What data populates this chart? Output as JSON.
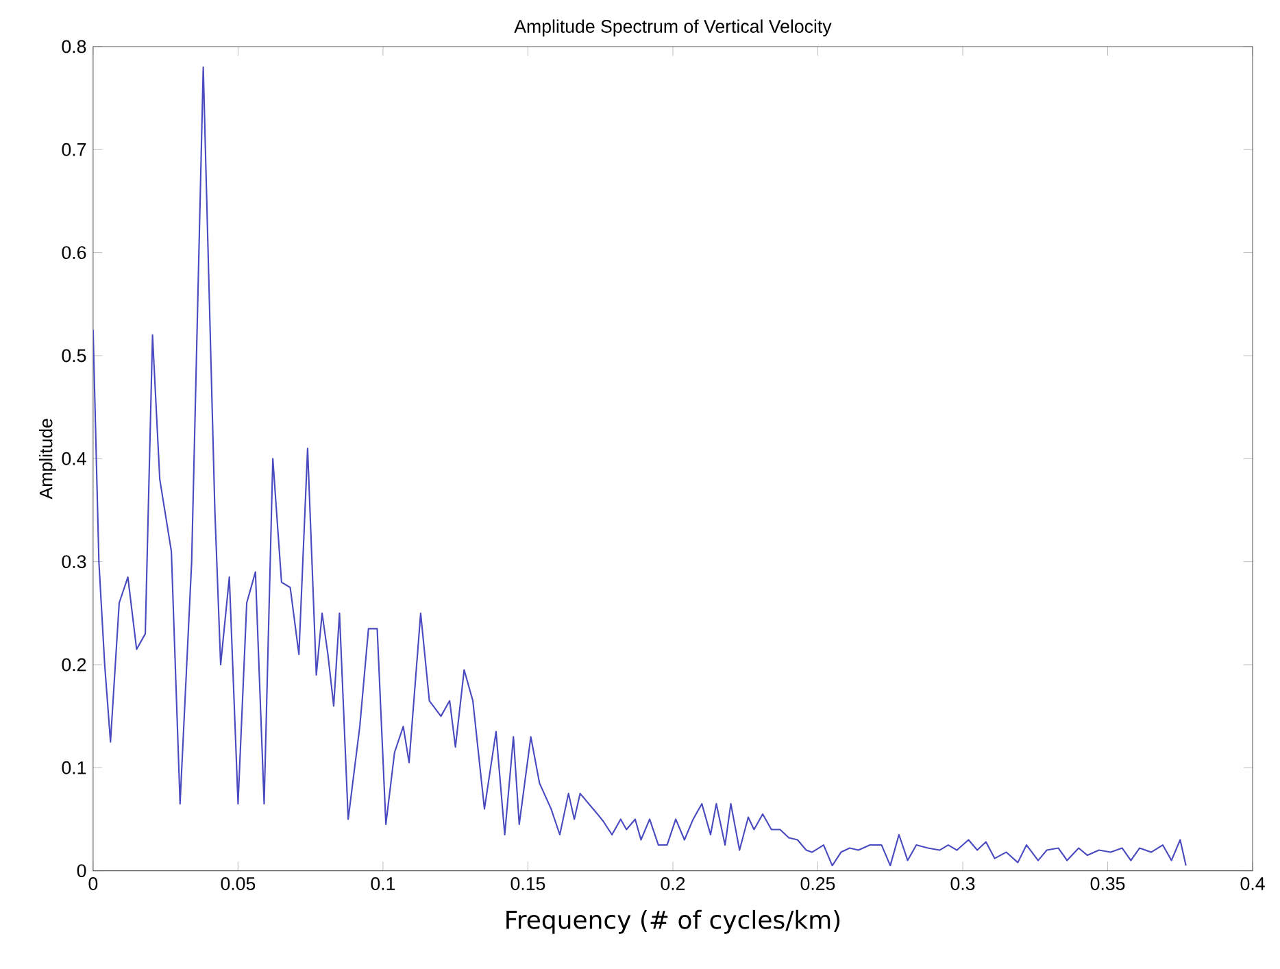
{
  "chart_data": {
    "type": "line",
    "title": "Amplitude Spectrum of Vertical Velocity",
    "xlabel": "Frequency (# of cycles/km)",
    "ylabel": "Amplitude",
    "xlim": [
      0,
      0.4
    ],
    "ylim": [
      0,
      0.8
    ],
    "xticks": [
      0,
      0.05,
      0.1,
      0.15,
      0.2,
      0.25,
      0.3,
      0.35,
      0.4
    ],
    "yticks": [
      0,
      0.1,
      0.2,
      0.3,
      0.4,
      0.5,
      0.6,
      0.7,
      0.8
    ],
    "marker": "none",
    "line_style": "solid",
    "series": [
      {
        "color": "#4a4ac0",
        "x": [
          0,
          0.002,
          0.004,
          0.006,
          0.009,
          0.012,
          0.015,
          0.018,
          0.0205,
          0.023,
          0.027,
          0.03,
          0.034,
          0.038,
          0.042,
          0.044,
          0.047,
          0.05,
          0.053,
          0.056,
          0.059,
          0.062,
          0.065,
          0.068,
          0.071,
          0.074,
          0.077,
          0.079,
          0.081,
          0.083,
          0.085,
          0.088,
          0.092,
          0.095,
          0.098,
          0.101,
          0.104,
          0.107,
          0.109,
          0.113,
          0.116,
          0.12,
          0.123,
          0.125,
          0.128,
          0.131,
          0.135,
          0.139,
          0.142,
          0.145,
          0.147,
          0.151,
          0.154,
          0.158,
          0.161,
          0.164,
          0.166,
          0.168,
          0.171,
          0.174,
          0.176,
          0.179,
          0.182,
          0.184,
          0.187,
          0.189,
          0.192,
          0.195,
          0.198,
          0.201,
          0.204,
          0.207,
          0.21,
          0.213,
          0.215,
          0.218,
          0.22,
          0.223,
          0.226,
          0.228,
          0.231,
          0.234,
          0.237,
          0.24,
          0.243,
          0.246,
          0.248,
          0.252,
          0.255,
          0.258,
          0.261,
          0.264,
          0.268,
          0.272,
          0.275,
          0.278,
          0.281,
          0.284,
          0.288,
          0.292,
          0.295,
          0.298,
          0.302,
          0.305,
          0.308,
          0.311,
          0.315,
          0.319,
          0.322,
          0.326,
          0.329,
          0.333,
          0.336,
          0.34,
          0.343,
          0.347,
          0.351,
          0.355,
          0.358,
          0.361,
          0.365,
          0.369,
          0.372,
          0.375,
          0.377
        ],
        "values": [
          0.525,
          0.3,
          0.2,
          0.125,
          0.26,
          0.285,
          0.215,
          0.23,
          0.52,
          0.38,
          0.31,
          0.065,
          0.3,
          0.78,
          0.35,
          0.2,
          0.285,
          0.065,
          0.26,
          0.29,
          0.065,
          0.4,
          0.28,
          0.275,
          0.21,
          0.41,
          0.19,
          0.25,
          0.21,
          0.16,
          0.25,
          0.05,
          0.14,
          0.235,
          0.235,
          0.045,
          0.115,
          0.14,
          0.105,
          0.25,
          0.165,
          0.15,
          0.165,
          0.12,
          0.195,
          0.165,
          0.06,
          0.135,
          0.035,
          0.13,
          0.045,
          0.13,
          0.085,
          0.06,
          0.035,
          0.075,
          0.05,
          0.075,
          0.065,
          0.055,
          0.048,
          0.035,
          0.05,
          0.04,
          0.05,
          0.03,
          0.05,
          0.025,
          0.025,
          0.05,
          0.03,
          0.05,
          0.065,
          0.035,
          0.065,
          0.025,
          0.065,
          0.02,
          0.052,
          0.04,
          0.055,
          0.04,
          0.04,
          0.032,
          0.03,
          0.02,
          0.018,
          0.025,
          0.005,
          0.018,
          0.022,
          0.02,
          0.025,
          0.025,
          0.005,
          0.035,
          0.01,
          0.025,
          0.022,
          0.02,
          0.025,
          0.02,
          0.03,
          0.02,
          0.028,
          0.012,
          0.018,
          0.008,
          0.025,
          0.01,
          0.02,
          0.022,
          0.01,
          0.022,
          0.015,
          0.02,
          0.018,
          0.022,
          0.01,
          0.022,
          0.018,
          0.025,
          0.01,
          0.03,
          0.005
        ]
      }
    ]
  }
}
